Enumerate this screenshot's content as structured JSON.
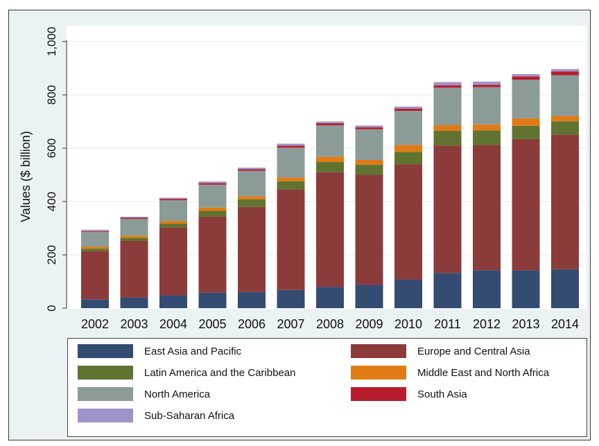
{
  "chart_data": {
    "type": "bar",
    "stacked": true,
    "title": "",
    "xlabel": "",
    "ylabel": "Values ($ billion)",
    "ylim": [
      0,
      1000
    ],
    "yticks": [
      0,
      200,
      400,
      600,
      800,
      1000
    ],
    "ytick_labels": [
      "0",
      "200",
      "400",
      "600",
      "800",
      "1,000"
    ],
    "grid": true,
    "legend_position": "bottom",
    "categories": [
      "2002",
      "2003",
      "2004",
      "2005",
      "2006",
      "2007",
      "2008",
      "2009",
      "2010",
      "2011",
      "2012",
      "2013",
      "2014"
    ],
    "series": [
      {
        "name": "East Asia and Pacific",
        "color": "#344b72",
        "values": [
          33,
          40,
          48,
          58,
          60,
          68,
          80,
          88,
          108,
          132,
          142,
          142,
          146
        ]
      },
      {
        "name": "Europe and Central Asia",
        "color": "#8c3b3b",
        "values": [
          180,
          212,
          255,
          285,
          320,
          378,
          430,
          412,
          432,
          478,
          470,
          492,
          505
        ]
      },
      {
        "name": "Latin America and the Caribbean",
        "color": "#617330",
        "values": [
          10,
          12,
          14,
          22,
          28,
          30,
          38,
          38,
          46,
          55,
          55,
          50,
          50
        ]
      },
      {
        "name": "Middle East and North Africa",
        "color": "#e07b16",
        "values": [
          8,
          8,
          10,
          12,
          12,
          14,
          20,
          18,
          26,
          22,
          22,
          28,
          20
        ]
      },
      {
        "name": "North America",
        "color": "#8b9b98",
        "values": [
          55,
          63,
          78,
          86,
          95,
          112,
          118,
          115,
          128,
          140,
          140,
          145,
          153
        ]
      },
      {
        "name": "South Asia",
        "color": "#b81d2e",
        "values": [
          3,
          4,
          5,
          6,
          6,
          7,
          8,
          7,
          8,
          9,
          9,
          12,
          14
        ]
      },
      {
        "name": "Sub-Saharan Africa",
        "color": "#a193c9",
        "values": [
          5,
          4,
          4,
          6,
          6,
          8,
          6,
          7,
          8,
          12,
          12,
          9,
          9
        ]
      }
    ]
  }
}
